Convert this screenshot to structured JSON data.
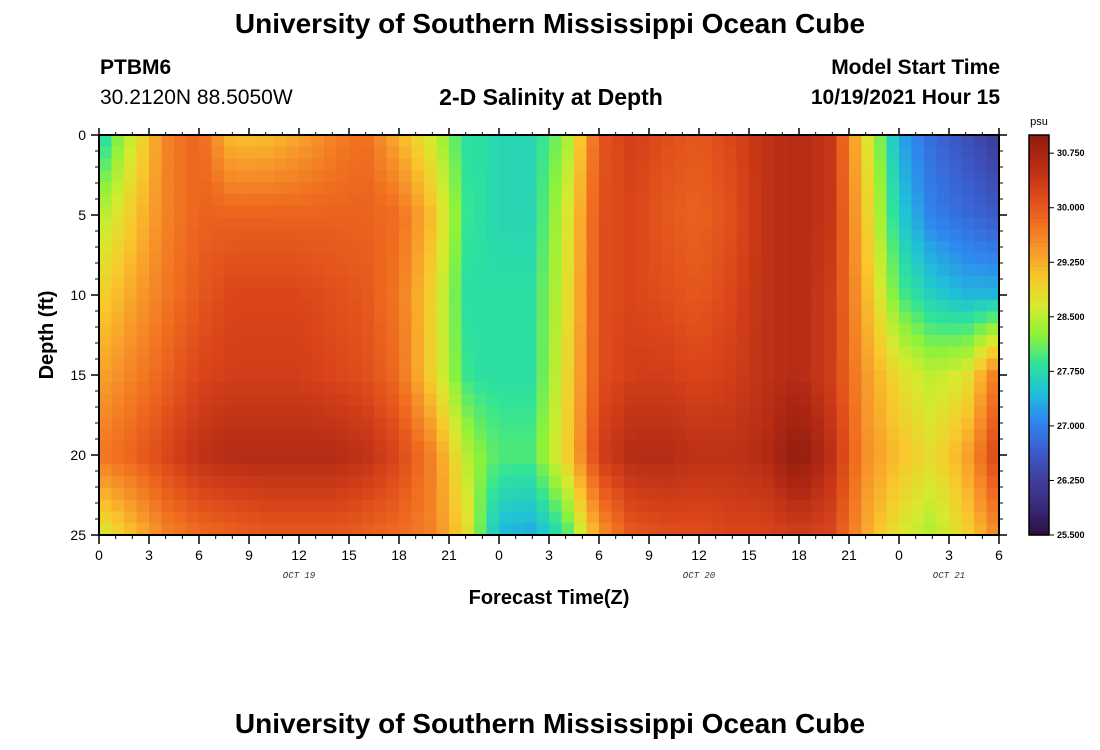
{
  "header": {
    "title": "University of Southern Mississippi Ocean Cube",
    "station_id": "PTBM6",
    "coordinates": "30.2120N  88.5050W",
    "plot_title": "2-D Salinity at Depth",
    "model_start_label": "Model Start Time",
    "model_start_value": "10/19/2021 Hour 15"
  },
  "footer": {
    "title": "University of Southern Mississippi Ocean Cube"
  },
  "chart_data": {
    "type": "heatmap",
    "title": "2-D Salinity at Depth",
    "xlabel": "Forecast Time(Z)",
    "ylabel": "Depth (ft)",
    "x_range_hours": [
      0,
      54
    ],
    "y_range_ft": [
      0,
      25
    ],
    "x_tick_labels": [
      "0",
      "3",
      "6",
      "9",
      "12",
      "15",
      "18",
      "21",
      "0",
      "3",
      "6",
      "9",
      "12",
      "15",
      "18",
      "21",
      "0",
      "3",
      "6"
    ],
    "y_tick_labels": [
      "0",
      "5",
      "10",
      "15",
      "20",
      "25"
    ],
    "date_labels": [
      {
        "label": "OCT 19",
        "hour": 12
      },
      {
        "label": "OCT 20",
        "hour": 36
      },
      {
        "label": "OCT 21",
        "hour": 51
      }
    ],
    "colorbar": {
      "unit": "psu",
      "min": 25.5,
      "max": 31.0,
      "tick_labels": [
        "25.500",
        "26.250",
        "27.000",
        "27.750",
        "28.500",
        "29.250",
        "30.000",
        "30.750"
      ],
      "colors": [
        "#2a0f3d",
        "#3b2a7a",
        "#3f3f9f",
        "#3b5fcf",
        "#2f86f0",
        "#1fc1d8",
        "#2fe39a",
        "#8ef23a",
        "#d6ea2e",
        "#f9c72c",
        "#f7962a",
        "#ef6a1f",
        "#d9441a",
        "#b32a14",
        "#8f1c0e"
      ]
    },
    "grid": false,
    "field_description": "Salinity (psu) as a function of forecast hour (x) and depth in feet (y); values approximated from the color field",
    "hours": [
      0,
      2,
      4,
      6,
      8,
      10,
      12,
      14,
      16,
      18,
      20,
      22,
      23,
      24,
      26,
      28,
      30,
      32,
      34,
      36,
      38,
      40,
      42,
      44,
      46,
      48,
      50,
      52,
      54
    ],
    "depths": [
      0,
      5,
      10,
      15,
      20,
      25
    ],
    "salinity": [
      [
        27.6,
        28.6,
        29.6,
        29.9,
        29.1,
        29.1,
        29.3,
        29.6,
        29.8,
        29.2,
        28.6,
        27.8,
        27.8,
        27.7,
        27.7,
        28.3,
        30.0,
        30.3,
        30.1,
        30.0,
        30.2,
        30.5,
        30.6,
        30.4,
        28.8,
        27.3,
        26.8,
        26.5,
        26.2
      ],
      [
        28.4,
        29.0,
        29.6,
        29.9,
        29.9,
        29.9,
        29.9,
        29.9,
        29.9,
        29.8,
        29.1,
        27.9,
        27.8,
        27.7,
        27.7,
        28.6,
        30.1,
        30.2,
        30.0,
        29.9,
        30.1,
        30.5,
        30.6,
        30.4,
        29.0,
        27.6,
        27.0,
        26.8,
        26.6
      ],
      [
        28.9,
        29.3,
        29.7,
        30.0,
        30.2,
        30.2,
        30.2,
        30.1,
        30.0,
        29.7,
        28.9,
        27.8,
        27.8,
        27.8,
        27.8,
        28.7,
        30.1,
        30.2,
        30.1,
        30.0,
        30.2,
        30.5,
        30.6,
        30.3,
        29.2,
        28.0,
        27.6,
        27.4,
        27.4
      ],
      [
        29.3,
        29.6,
        29.9,
        30.2,
        30.3,
        30.3,
        30.3,
        30.2,
        30.1,
        29.8,
        28.9,
        27.9,
        27.8,
        27.8,
        27.8,
        28.8,
        30.1,
        30.3,
        30.3,
        30.2,
        30.3,
        30.5,
        30.6,
        30.3,
        29.4,
        28.8,
        28.5,
        28.7,
        29.8
      ],
      [
        29.7,
        29.9,
        30.2,
        30.5,
        30.6,
        30.6,
        30.6,
        30.6,
        30.5,
        30.2,
        29.6,
        28.5,
        28.2,
        28.0,
        28.0,
        28.9,
        30.3,
        30.6,
        30.6,
        30.5,
        30.5,
        30.6,
        31.0,
        30.5,
        29.5,
        29.1,
        28.8,
        29.3,
        30.3
      ],
      [
        28.6,
        29.1,
        29.6,
        29.8,
        29.9,
        30.0,
        30.0,
        30.0,
        29.9,
        29.8,
        29.6,
        28.9,
        28.0,
        27.4,
        27.3,
        27.9,
        29.4,
        30.0,
        30.1,
        30.1,
        30.2,
        30.2,
        30.3,
        30.2,
        29.3,
        28.7,
        28.4,
        28.9,
        29.6
      ]
    ]
  }
}
